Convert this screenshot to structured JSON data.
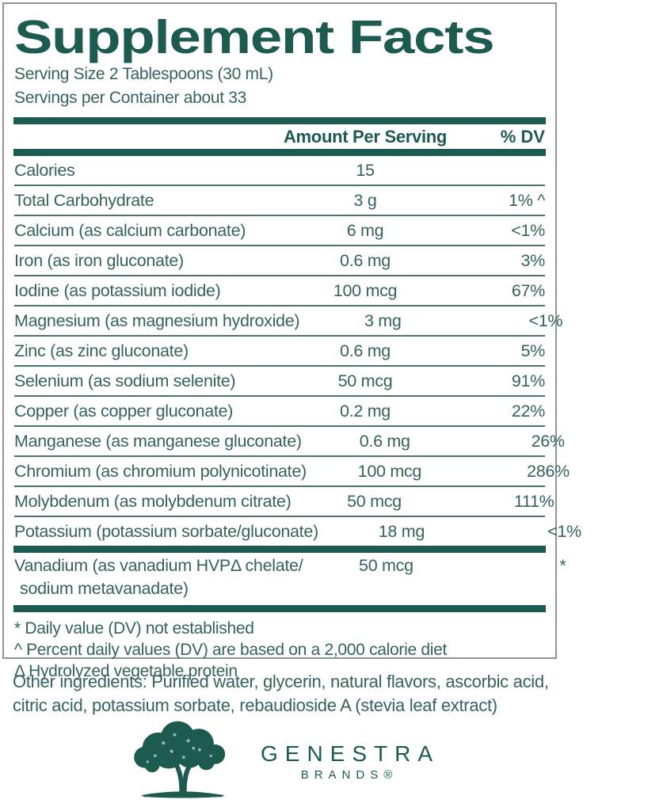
{
  "panel": {
    "title": "Supplement Facts",
    "serving_size": "Serving Size 2 Tablespoons (30 mL)",
    "servings_per_container": "Servings per Container about 33",
    "footnotes": [
      "* Daily value (DV) not established",
      "^ Percent daily values (DV) are based on a 2,000 calorie diet",
      "Δ Hydrolyzed vegetable protein"
    ]
  },
  "table": {
    "columns": {
      "amount": "Amount Per Serving",
      "dv": "% DV"
    },
    "rows": [
      {
        "name": "Calories",
        "amount": "15",
        "dv": ""
      },
      {
        "name": "Total Carbohydrate",
        "amount": "3 g",
        "dv": "1% ^"
      },
      {
        "name": "Calcium (as calcium carbonate)",
        "amount": "6 mg",
        "dv": "<1%"
      },
      {
        "name": "Iron (as iron gluconate)",
        "amount": "0.6 mg",
        "dv": "3%"
      },
      {
        "name": "Iodine (as potassium iodide)",
        "amount": "100 mcg",
        "dv": "67%"
      },
      {
        "name": "Magnesium (as magnesium hydroxide)",
        "amount": "3 mg",
        "dv": "<1%"
      },
      {
        "name": "Zinc (as zinc gluconate)",
        "amount": "0.6 mg",
        "dv": "5%"
      },
      {
        "name": "Selenium (as sodium selenite)",
        "amount": "50 mcg",
        "dv": "91%"
      },
      {
        "name": "Copper (as copper gluconate)",
        "amount": "0.2 mg",
        "dv": "22%"
      },
      {
        "name": "Manganese (as manganese gluconate)",
        "amount": "0.6 mg",
        "dv": "26%"
      },
      {
        "name": "Chromium (as chromium polynicotinate)",
        "amount": "100 mcg",
        "dv": "286%"
      },
      {
        "name": "Molybdenum (as molybdenum citrate)",
        "amount": "50 mcg",
        "dv": "111%"
      },
      {
        "name": "Potassium (potassium sorbate/gluconate)",
        "amount": "18 mg",
        "dv": "<1%"
      }
    ],
    "separated_row": {
      "name_line1": "Vanadium (as vanadium HVPΔ chelate/",
      "name_line2": "sodium metavanadate)",
      "amount": "50 mcg",
      "dv": "*"
    }
  },
  "other_ingredients": "Other ingredients: Purified water, glycerin, natural flavors, ascorbic acid, citric acid, potassium sorbate, rebaudioside A (stevia leaf extract)",
  "brand": {
    "name": "GENESTRA",
    "sub": "BRANDS®",
    "logo_icon": "tree-icon"
  },
  "colors": {
    "teal_dark": "#1d5a50",
    "teal_text": "#35635c",
    "border_gray": "#8f9594"
  }
}
